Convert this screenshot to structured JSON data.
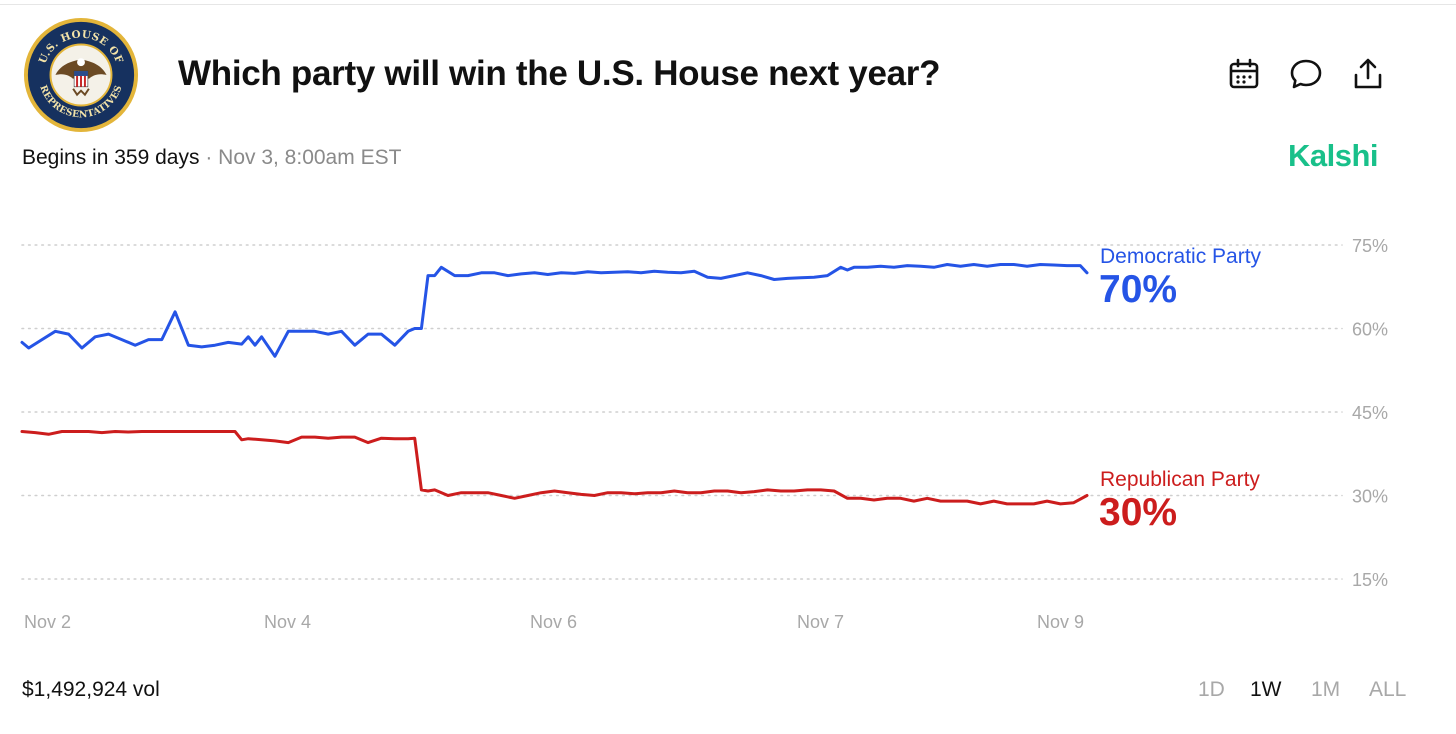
{
  "header": {
    "title": "Which party will win the U.S. House next year?",
    "seal_text_top": "U.S. HOUSE OF",
    "seal_text_bottom": "REPRESENTATIVES"
  },
  "subheader": {
    "begins": "Begins in 359 days",
    "separator": "·",
    "date": "Nov 3, 8:00am EST",
    "brand": "Kalshi"
  },
  "icons": {
    "calendar": "calendar-icon",
    "comment": "comment-icon",
    "share": "share-icon"
  },
  "colors": {
    "democratic": "#2554e6",
    "republican": "#cc1d1d",
    "brand": "#19c08a",
    "grid": "#cfcfcf",
    "muted": "#a8a8a8"
  },
  "chart_data": {
    "type": "line",
    "title": "Which party will win the U.S. House next year?",
    "xlabel": "",
    "ylabel": "",
    "ylim": [
      10,
      80
    ],
    "yticks": [
      75,
      60,
      45,
      30,
      15
    ],
    "ytick_labels": [
      "75%",
      "60%",
      "45%",
      "30%",
      "15%"
    ],
    "xrange": [
      0,
      7
    ],
    "xticks": [
      0.2,
      2.0,
      4.0,
      6.0,
      7.8
    ],
    "xtick_labels": [
      "Nov 2",
      "Nov 4",
      "Nov 6",
      "Nov 7",
      "Nov 9"
    ],
    "grid": true,
    "series": [
      {
        "name": "Democratic Party",
        "end_label": "70%",
        "color": "#2554e6",
        "x": [
          0.0,
          0.05,
          0.15,
          0.25,
          0.35,
          0.45,
          0.55,
          0.65,
          0.75,
          0.85,
          0.95,
          1.05,
          1.15,
          1.25,
          1.35,
          1.45,
          1.55,
          1.65,
          1.7,
          1.75,
          1.8,
          1.9,
          2.0,
          2.1,
          2.2,
          2.3,
          2.4,
          2.5,
          2.6,
          2.7,
          2.8,
          2.9,
          2.95,
          3.0,
          3.05,
          3.1,
          3.15,
          3.25,
          3.35,
          3.45,
          3.55,
          3.65,
          3.75,
          3.85,
          3.95,
          4.05,
          4.15,
          4.25,
          4.35,
          4.45,
          4.55,
          4.65,
          4.75,
          4.85,
          4.95,
          5.05,
          5.15,
          5.25,
          5.35,
          5.45,
          5.55,
          5.65,
          5.75,
          5.85,
          5.95,
          6.05,
          6.15,
          6.2,
          6.25,
          6.35,
          6.45,
          6.55,
          6.65,
          6.75,
          6.85,
          6.95,
          7.05,
          7.15,
          7.25,
          7.35,
          7.45,
          7.55,
          7.65,
          7.75,
          7.85,
          7.95,
          8.0
        ],
        "y": [
          57.5,
          56.5,
          58,
          59.5,
          59,
          56.5,
          58.5,
          59,
          58,
          57,
          58,
          58,
          63,
          57,
          56.7,
          57,
          57.5,
          57.2,
          58.5,
          57,
          58.5,
          55,
          59.5,
          59.5,
          59.5,
          59,
          59.5,
          57,
          59,
          59,
          57,
          59.5,
          60,
          60,
          69.5,
          69.5,
          71,
          69.5,
          69.5,
          70,
          70,
          69.5,
          69.8,
          70,
          69.7,
          70,
          69.9,
          70.2,
          70,
          70.1,
          70.2,
          70,
          70.3,
          70.1,
          70,
          70.3,
          69.2,
          69,
          69.5,
          70,
          69.5,
          68.8,
          69,
          69.1,
          69.2,
          69.5,
          71,
          70.5,
          71,
          71,
          71.2,
          71,
          71.3,
          71.2,
          71,
          71.5,
          71.2,
          71.5,
          71.2,
          71.5,
          71.5,
          71.2,
          71.5,
          71.4,
          71.3,
          71.3,
          70
        ]
      },
      {
        "name": "Republican Party",
        "end_label": "30%",
        "color": "#cc1d1d",
        "x": [
          0.0,
          0.1,
          0.2,
          0.3,
          0.4,
          0.5,
          0.6,
          0.7,
          0.8,
          0.9,
          1.0,
          1.1,
          1.2,
          1.3,
          1.4,
          1.5,
          1.6,
          1.65,
          1.7,
          1.8,
          1.9,
          2.0,
          2.1,
          2.2,
          2.3,
          2.4,
          2.5,
          2.6,
          2.7,
          2.8,
          2.9,
          2.95,
          3.0,
          3.05,
          3.1,
          3.2,
          3.3,
          3.4,
          3.5,
          3.6,
          3.7,
          3.8,
          3.9,
          4.0,
          4.1,
          4.2,
          4.3,
          4.4,
          4.5,
          4.6,
          4.7,
          4.8,
          4.9,
          5.0,
          5.1,
          5.2,
          5.3,
          5.4,
          5.5,
          5.6,
          5.7,
          5.8,
          5.9,
          6.0,
          6.1,
          6.2,
          6.3,
          6.4,
          6.5,
          6.6,
          6.7,
          6.8,
          6.9,
          7.0,
          7.1,
          7.2,
          7.3,
          7.4,
          7.5,
          7.6,
          7.7,
          7.8,
          7.9,
          8.0
        ],
        "y": [
          41.5,
          41.3,
          41,
          41.5,
          41.5,
          41.5,
          41.3,
          41.5,
          41.4,
          41.5,
          41.5,
          41.5,
          41.5,
          41.5,
          41.5,
          41.5,
          41.5,
          40,
          40.2,
          40,
          39.8,
          39.5,
          40.5,
          40.5,
          40.3,
          40.5,
          40.5,
          39.5,
          40.3,
          40.2,
          40.2,
          40.3,
          31,
          30.8,
          31,
          30,
          30.5,
          30.5,
          30.5,
          30,
          29.5,
          30,
          30.5,
          30.8,
          30.5,
          30.2,
          30,
          30.5,
          30.5,
          30.3,
          30.5,
          30.5,
          30.8,
          30.5,
          30.5,
          30.8,
          30.8,
          30.5,
          30.7,
          31,
          30.8,
          30.8,
          31,
          31,
          30.8,
          29.5,
          29.5,
          29.2,
          29.5,
          29.5,
          29,
          29.5,
          29,
          29,
          29,
          28.5,
          29,
          28.5,
          28.5,
          28.5,
          29,
          28.5,
          28.7,
          30
        ]
      }
    ]
  },
  "footer": {
    "volume": "$1,492,924 vol",
    "ranges": [
      {
        "label": "1D",
        "active": false
      },
      {
        "label": "1W",
        "active": true
      },
      {
        "label": "1M",
        "active": false
      },
      {
        "label": "ALL",
        "active": false
      }
    ]
  }
}
